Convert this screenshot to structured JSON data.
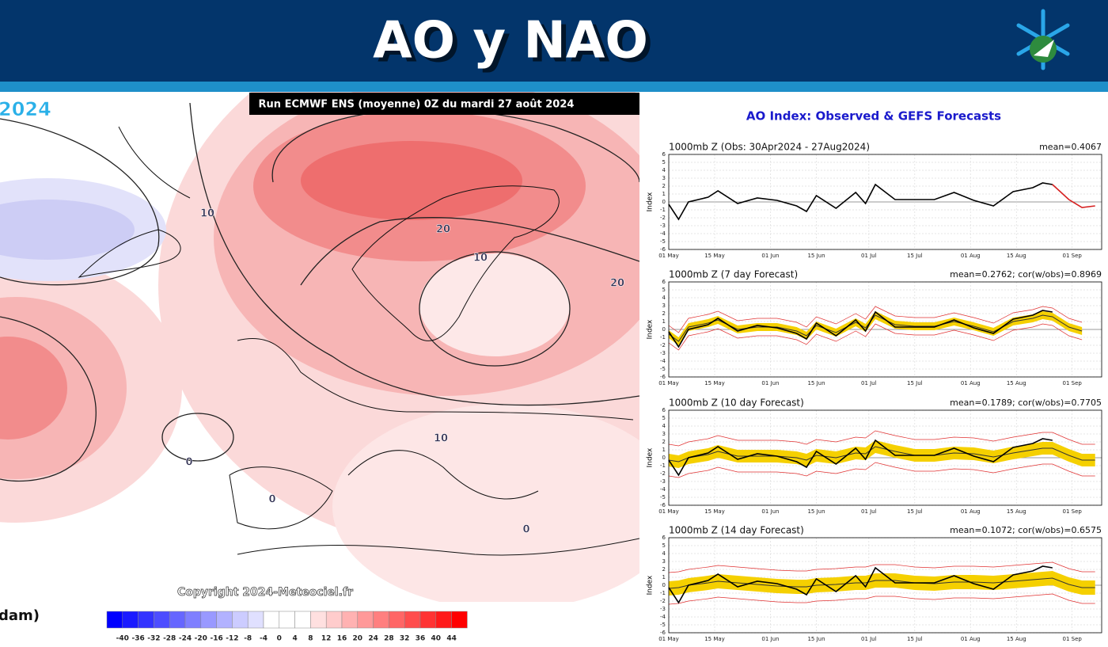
{
  "header": {
    "title": "AO y NAO"
  },
  "map": {
    "title": "Run ECMWF ENS (moyenne) 0Z du mardi 27 août 2024",
    "year_fragment": "2024",
    "copyright": "Copyright 2024-Meteociel.fr",
    "unit_label": "dam)",
    "contour_labels": [
      10,
      20,
      10,
      20,
      10,
      0,
      0,
      0
    ],
    "colorbar": {
      "labels": [
        -40,
        -36,
        -32,
        -28,
        -24,
        -20,
        -16,
        -12,
        -8,
        -4,
        0,
        4,
        8,
        12,
        16,
        20,
        24,
        28,
        32,
        36,
        40,
        44
      ],
      "colors": [
        "#0000ff",
        "#1a1aff",
        "#3333ff",
        "#4d4dff",
        "#6666ff",
        "#7f7fff",
        "#9999ff",
        "#b2b2ff",
        "#ccccff",
        "#e0e0ff",
        "#ffffff",
        "#ffffff",
        "#ffffff",
        "#ffe0e0",
        "#ffcccc",
        "#ffb2b2",
        "#ff9999",
        "#ff7f7f",
        "#ff6666",
        "#ff4d4d",
        "#ff3333",
        "#ff1a1a",
        "#ff0000"
      ]
    }
  },
  "panel_title": "AO Index: Observed & GEFS Forecasts",
  "chart_data": [
    {
      "type": "line",
      "title": "1000mb Z (Obs: 30Apr2024 - 27Aug2024)",
      "annotation": "mean=0.4067",
      "ylabel": "Index",
      "x": [
        0,
        3,
        6,
        12,
        15,
        21,
        27,
        33,
        39,
        42,
        45,
        51,
        57,
        60,
        63,
        69,
        75,
        81,
        87,
        93,
        99,
        105,
        111,
        114,
        117,
        122,
        126,
        130
      ],
      "xlim": [
        0,
        132
      ],
      "ylim": [
        -6,
        6
      ],
      "yticks": [
        -6,
        -5,
        -4,
        -3,
        -2,
        -1,
        0,
        1,
        2,
        3,
        4,
        5,
        6
      ],
      "xticks": [
        {
          "value": 0,
          "label": "01 May"
        },
        {
          "value": 14,
          "label": "15 May"
        },
        {
          "value": 31,
          "label": "01 Jun"
        },
        {
          "value": 45,
          "label": "15 Jun"
        },
        {
          "value": 61,
          "label": "01 Jul"
        },
        {
          "value": 75,
          "label": "15 Jul"
        },
        {
          "value": 92,
          "label": "01 Aug"
        },
        {
          "value": 106,
          "label": "15 Aug"
        },
        {
          "value": 123,
          "label": "01 Sep"
        }
      ],
      "series": [
        {
          "color": "#000000",
          "values": [
            -0.3,
            -2.2,
            0,
            0.6,
            1.4,
            -0.2,
            0.5,
            0.2,
            -0.5,
            -1.2,
            0.8,
            -0.8,
            1.2,
            -0.2,
            2.2,
            0.3,
            0.3,
            0.3,
            1.2,
            0.2,
            -0.5,
            1.3,
            1.8,
            2.4,
            2.2,
            null,
            null,
            null
          ]
        },
        {
          "color": "#d62020",
          "values": [
            null,
            null,
            null,
            null,
            null,
            null,
            null,
            null,
            null,
            null,
            null,
            null,
            null,
            null,
            null,
            null,
            null,
            null,
            null,
            null,
            null,
            null,
            null,
            null,
            2.2,
            0.3,
            -0.7,
            -0.5
          ]
        }
      ]
    },
    {
      "type": "line",
      "title": "1000mb Z (7 day Forecast)",
      "annotation": "mean=0.2762; cor(w/obs)=0.8969",
      "ylabel": "Index",
      "x": [
        0,
        3,
        6,
        12,
        15,
        21,
        27,
        33,
        39,
        42,
        45,
        51,
        57,
        60,
        63,
        69,
        75,
        81,
        87,
        93,
        99,
        105,
        111,
        114,
        117,
        122,
        126,
        130
      ],
      "xlim": [
        0,
        132
      ],
      "ylim": [
        -6,
        6
      ],
      "yticks": [
        -6,
        -5,
        -4,
        -3,
        -2,
        -1,
        0,
        1,
        2,
        3,
        4,
        5,
        6
      ],
      "xticks": [
        {
          "value": 0,
          "label": "01 May"
        },
        {
          "value": 14,
          "label": "15 May"
        },
        {
          "value": 31,
          "label": "01 Jun"
        },
        {
          "value": 45,
          "label": "15 Jun"
        },
        {
          "value": 61,
          "label": "01 Jul"
        },
        {
          "value": 75,
          "label": "15 Jul"
        },
        {
          "value": 92,
          "label": "01 Aug"
        },
        {
          "value": 106,
          "label": "15 Aug"
        },
        {
          "value": 123,
          "label": "01 Sep"
        }
      ],
      "series": [
        {
          "color": "#333333",
          "band_color": "#f5d000",
          "spread_color": "#e03030",
          "band": 0.5,
          "spread": 1.1,
          "values": [
            -0.6,
            -1.5,
            0.3,
            0.8,
            1.2,
            0,
            0.3,
            0.3,
            -0.2,
            -0.8,
            0.5,
            -0.4,
            0.9,
            0.2,
            1.8,
            0.6,
            0.4,
            0.4,
            1.0,
            0.4,
            -0.3,
            1.0,
            1.4,
            1.8,
            1.6,
            0.3,
            -0.2,
            null
          ]
        },
        {
          "color": "#000000",
          "values": [
            -0.3,
            -2.2,
            0,
            0.6,
            1.4,
            -0.2,
            0.5,
            0.2,
            -0.5,
            -1.2,
            0.8,
            -0.8,
            1.2,
            -0.2,
            2.2,
            0.3,
            0.3,
            0.3,
            1.2,
            0.2,
            -0.5,
            1.3,
            1.8,
            2.4,
            2.2,
            null,
            null,
            null
          ]
        }
      ]
    },
    {
      "type": "line",
      "title": "1000mb Z (10 day Forecast)",
      "annotation": "mean=0.1789; cor(w/obs)=0.7705",
      "ylabel": "Index",
      "x": [
        0,
        3,
        6,
        12,
        15,
        21,
        27,
        33,
        39,
        42,
        45,
        51,
        57,
        60,
        63,
        69,
        75,
        81,
        87,
        93,
        99,
        105,
        111,
        114,
        117,
        122,
        126,
        130
      ],
      "xlim": [
        0,
        132
      ],
      "ylim": [
        -6,
        6
      ],
      "yticks": [
        -6,
        -5,
        -4,
        -3,
        -2,
        -1,
        0,
        1,
        2,
        3,
        4,
        5,
        6
      ],
      "xticks": [
        {
          "value": 0,
          "label": "01 May"
        },
        {
          "value": 14,
          "label": "15 May"
        },
        {
          "value": 31,
          "label": "01 Jun"
        },
        {
          "value": 45,
          "label": "15 Jun"
        },
        {
          "value": 61,
          "label": "01 Jul"
        },
        {
          "value": 75,
          "label": "15 Jul"
        },
        {
          "value": 92,
          "label": "01 Aug"
        },
        {
          "value": 106,
          "label": "15 Aug"
        },
        {
          "value": 123,
          "label": "01 Sep"
        }
      ],
      "series": [
        {
          "color": "#333333",
          "band_color": "#f5d000",
          "spread_color": "#e03030",
          "band": 0.8,
          "spread": 2.0,
          "values": [
            -0.3,
            -0.5,
            0,
            0.4,
            0.8,
            0.2,
            0.2,
            0.2,
            0,
            -0.3,
            0.3,
            0,
            0.6,
            0.5,
            1.4,
            0.8,
            0.3,
            0.3,
            0.6,
            0.5,
            0.1,
            0.6,
            1.0,
            1.2,
            1.2,
            0.3,
            -0.3,
            -0.3
          ]
        },
        {
          "color": "#000000",
          "values": [
            -0.3,
            -2.2,
            0,
            0.6,
            1.4,
            -0.2,
            0.5,
            0.2,
            -0.5,
            -1.2,
            0.8,
            -0.8,
            1.2,
            -0.2,
            2.2,
            0.3,
            0.3,
            0.3,
            1.2,
            0.2,
            -0.5,
            1.3,
            1.8,
            2.4,
            2.2,
            null,
            null,
            null
          ]
        }
      ]
    },
    {
      "type": "line",
      "title": "1000mb Z (14 day Forecast)",
      "annotation": "mean=0.1072; cor(w/obs)=0.6575",
      "ylabel": "Index",
      "x": [
        0,
        3,
        6,
        12,
        15,
        21,
        27,
        33,
        39,
        42,
        45,
        51,
        57,
        60,
        63,
        69,
        75,
        81,
        87,
        93,
        99,
        105,
        111,
        114,
        117,
        122,
        126,
        130
      ],
      "xlim": [
        0,
        132
      ],
      "ylim": [
        -6,
        6
      ],
      "yticks": [
        -6,
        -5,
        -4,
        -3,
        -2,
        -1,
        0,
        1,
        2,
        3,
        4,
        5,
        6
      ],
      "xticks": [
        {
          "value": 0,
          "label": "01 May"
        },
        {
          "value": 14,
          "label": "15 May"
        },
        {
          "value": 31,
          "label": "01 Jun"
        },
        {
          "value": 45,
          "label": "15 Jun"
        },
        {
          "value": 61,
          "label": "01 Jul"
        },
        {
          "value": 75,
          "label": "15 Jul"
        },
        {
          "value": 92,
          "label": "01 Aug"
        },
        {
          "value": 106,
          "label": "15 Aug"
        },
        {
          "value": 123,
          "label": "01 Sep"
        }
      ],
      "series": [
        {
          "color": "#333333",
          "band_color": "#f5d000",
          "spread_color": "#e03030",
          "band": 0.9,
          "spread": 2.0,
          "values": [
            -0.4,
            -0.3,
            0,
            0.3,
            0.5,
            0.3,
            0.1,
            -0.1,
            -0.2,
            -0.2,
            0,
            0.1,
            0.3,
            0.3,
            0.6,
            0.6,
            0.3,
            0.2,
            0.4,
            0.4,
            0.3,
            0.5,
            0.7,
            0.8,
            0.9,
            0.1,
            -0.3,
            -0.3
          ]
        },
        {
          "color": "#000000",
          "values": [
            -0.3,
            -2.2,
            0,
            0.6,
            1.4,
            -0.2,
            0.5,
            0.2,
            -0.5,
            -1.2,
            0.8,
            -0.8,
            1.2,
            -0.2,
            2.2,
            0.3,
            0.3,
            0.3,
            1.2,
            0.2,
            -0.5,
            1.3,
            1.8,
            2.4,
            2.2,
            null,
            null,
            null
          ]
        }
      ]
    }
  ]
}
